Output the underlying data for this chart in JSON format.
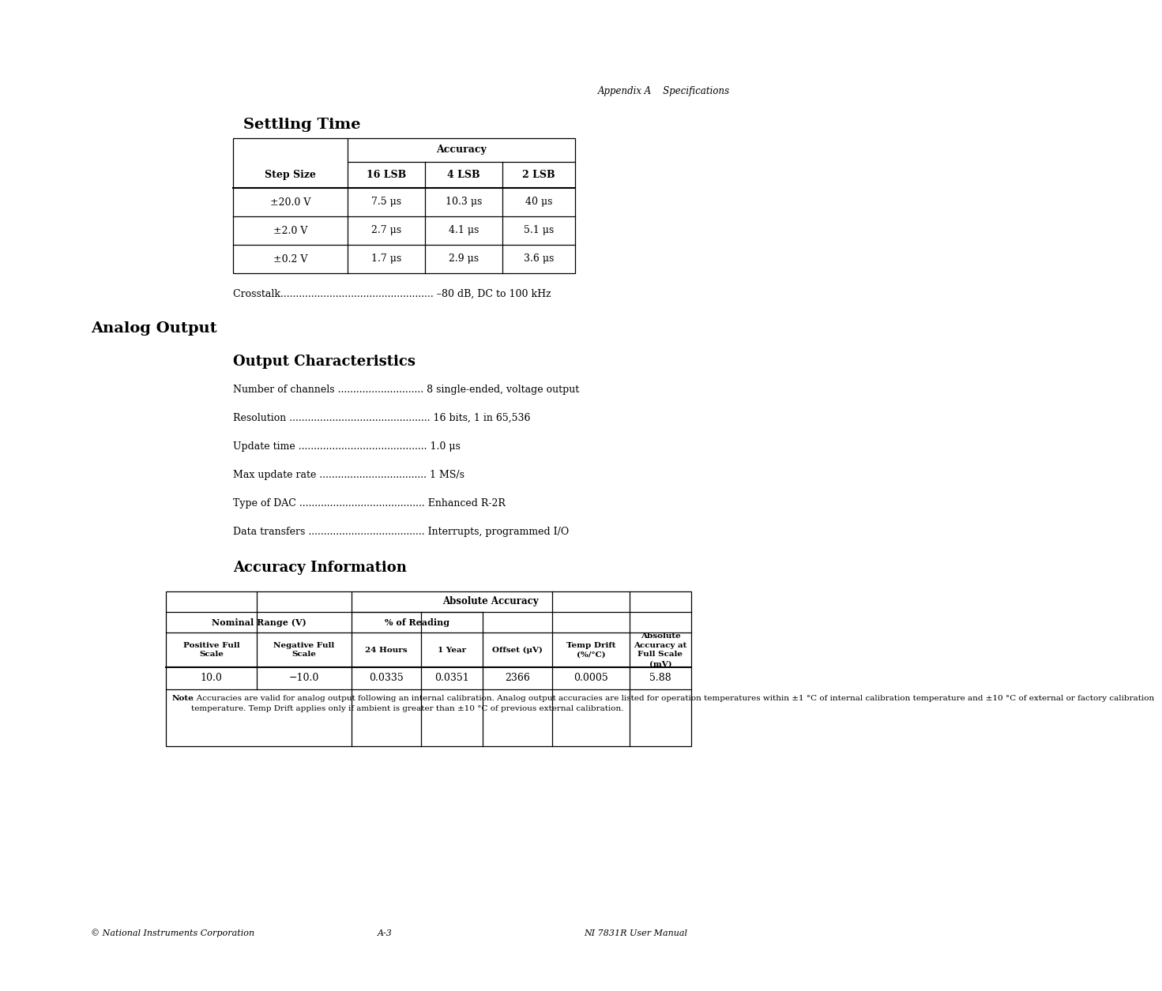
{
  "bg_color": "#ffffff",
  "page_header_right": "Appendix A    Specifications",
  "section1_title": "Settling Time",
  "settling_table": {
    "col_headers": [
      "Step Size",
      "16 LSB",
      "4 LSB",
      "2 LSB"
    ],
    "group_header": "Accuracy",
    "rows": [
      [
        "±20.0 V",
        "7.5 μs",
        "10.3 μs",
        "40 μs"
      ],
      [
        "±2.0 V",
        "2.7 μs",
        "4.1 μs",
        "5.1 μs"
      ],
      [
        "±0.2 V",
        "1.7 μs",
        "2.9 μs",
        "3.6 μs"
      ]
    ]
  },
  "crosstalk_line": "Crosstalk.................................................. –80 dB, DC to 100 kHz",
  "section2_title": "Analog Output",
  "subsection2_title": "Output Characteristics",
  "output_char_lines": [
    "Number of channels ............................ 8 single-ended, voltage output",
    "Resolution .............................................. 16 bits, 1 in 65,536",
    "Update time .......................................... 1.0 μs",
    "Max update rate ................................... 1 MS/s",
    "Type of DAC ......................................... Enhanced R-2R",
    "Data transfers ...................................... Interrupts, programmed I/O"
  ],
  "section3_title": "Accuracy Information",
  "accuracy_table": {
    "span_header": "Absolute Accuracy",
    "nominal_header": "Nominal Range (V)",
    "pct_header": "% of Reading",
    "col_headers": [
      "Positive Full\nScale",
      "Negative Full\nScale",
      "24 Hours",
      "1 Year",
      "Offset (μV)",
      "Temp Drift\n(%/°C)",
      "Absolute\nAccuracy at\nFull Scale\n(mV)"
    ],
    "data_row": [
      "10.0",
      "−10.0",
      "0.0335",
      "0.0351",
      "2366",
      "0.0005",
      "5.88"
    ],
    "note_bold": "Note",
    "note_text": ": Accuracies are valid for analog output following an internal calibration. Analog output accuracies are listed for operation temperatures within ±1 °C of internal calibration temperature and ±10 °C of external or factory calibration\ntemperature. Temp Drift applies only if ambient is greater than ±10 °C of previous external calibration."
  },
  "footer_left": "© National Instruments Corporation",
  "footer_center": "A-3",
  "footer_right": "NI 7831R User Manual"
}
